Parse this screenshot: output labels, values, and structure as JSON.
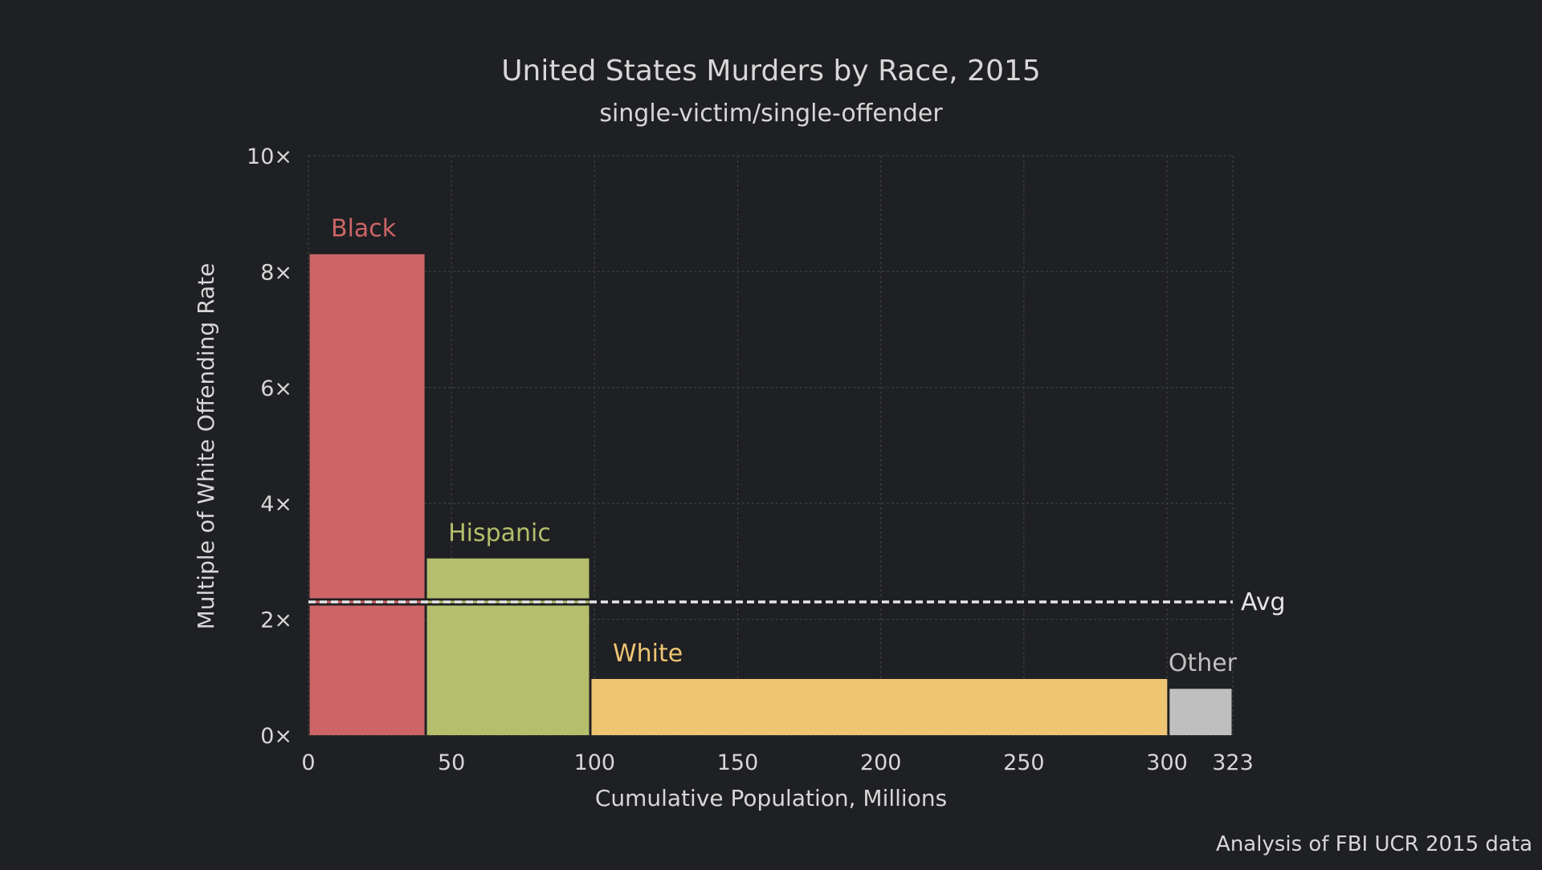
{
  "chart_data": {
    "type": "bar",
    "title": "United States Murders by Race, 2015",
    "subtitle": "single-victim/single-offender",
    "xlabel": "Cumulative Population, Millions",
    "ylabel": "Multiple of White Offending Rate",
    "xlim": [
      0,
      323
    ],
    "ylim": [
      0,
      10
    ],
    "grid": true,
    "x_ticks": [
      {
        "value": 0,
        "label": "0"
      },
      {
        "value": 50,
        "label": "50"
      },
      {
        "value": 100,
        "label": "100"
      },
      {
        "value": 150,
        "label": "150"
      },
      {
        "value": 200,
        "label": "200"
      },
      {
        "value": 250,
        "label": "250"
      },
      {
        "value": 300,
        "label": "300"
      },
      {
        "value": 323,
        "label": "323"
      }
    ],
    "y_ticks": [
      {
        "value": 0,
        "label": "0×"
      },
      {
        "value": 2,
        "label": "2×"
      },
      {
        "value": 4,
        "label": "4×"
      },
      {
        "value": 6,
        "label": "6×"
      },
      {
        "value": 8,
        "label": "8×"
      },
      {
        "value": 10,
        "label": "10×"
      }
    ],
    "series": [
      {
        "name": "Black",
        "x_start": 0,
        "x_end": 41,
        "value": 8.3,
        "color": "#cd6567"
      },
      {
        "name": "Hispanic",
        "x_start": 41,
        "x_end": 98.5,
        "value": 3.05,
        "color": "#b5be6c"
      },
      {
        "name": "White",
        "x_start": 98.5,
        "x_end": 300.5,
        "value": 0.97,
        "color": "#efc574"
      },
      {
        "name": "Other",
        "x_start": 300.5,
        "x_end": 323,
        "value": 0.8,
        "color": "#bfbfbf"
      }
    ],
    "average": {
      "label": "Avg",
      "value": 2.3,
      "color": "#e6e6e6"
    },
    "source_note": "Analysis of FBI UCR 2015 data"
  },
  "colors": {
    "background": "#1f2023",
    "text": "#d7d7d7",
    "grid": "#3b3c40"
  }
}
